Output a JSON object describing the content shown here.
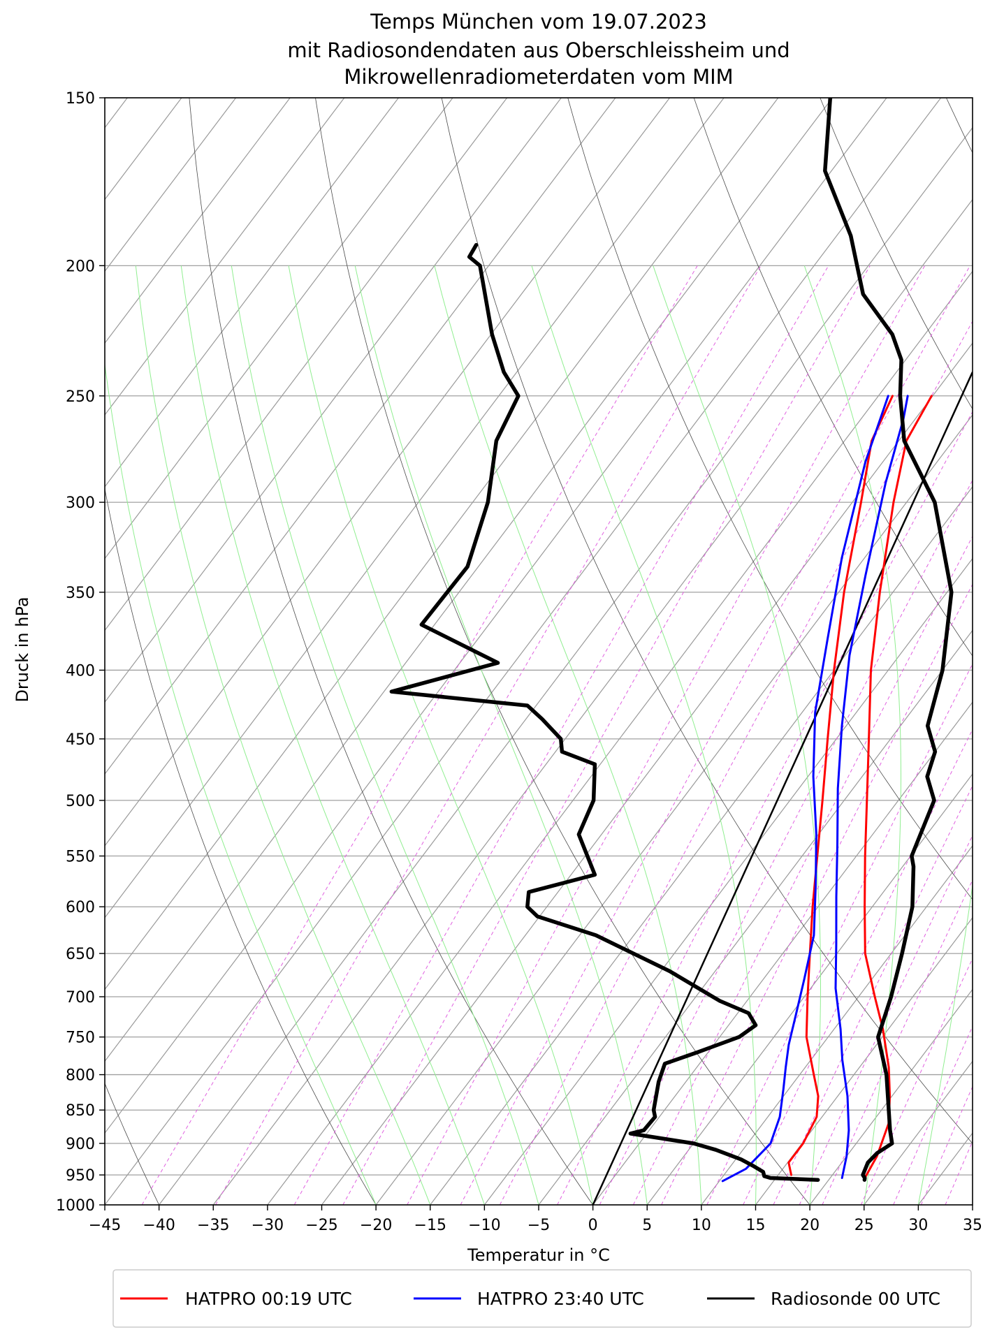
{
  "chart_data": {
    "type": "line",
    "subtype": "skew-T log-p thermodynamic diagram",
    "title_lines": [
      "Temps München vom 19.07.2023",
      "mit Radiosondendaten aus Oberschleissheim und",
      "Mikrowellenradiometerdaten vom MIM"
    ],
    "xlabel": "Temperatur in °C",
    "ylabel": "Druck in hPa",
    "xlim": [
      -45,
      35
    ],
    "ylim": [
      1000,
      150
    ],
    "yscale": "log",
    "x_ticks": [
      -45,
      -40,
      -35,
      -30,
      -25,
      -20,
      -15,
      -10,
      -5,
      0,
      5,
      10,
      15,
      20,
      25,
      30,
      35
    ],
    "x_tick_labels": [
      "−45",
      "−40",
      "−35",
      "−30",
      "−25",
      "−20",
      "−15",
      "−10",
      "−5",
      "0",
      "5",
      "10",
      "15",
      "20",
      "25",
      "30",
      "35"
    ],
    "y_ticks": [
      1000,
      950,
      900,
      850,
      800,
      750,
      700,
      650,
      600,
      550,
      500,
      450,
      400,
      350,
      300,
      250,
      200,
      150
    ],
    "grid": true,
    "legend_position": "bottom",
    "series": [
      {
        "name": "HATPRO 00:19 UTC",
        "color": "#ff0000",
        "profiles": [
          [
            [
              23.2,
              955
            ],
            [
              22.8,
              920
            ],
            [
              21.6,
              870
            ],
            [
              19.8,
              830
            ],
            [
              17.7,
              790
            ],
            [
              14.5,
              740
            ],
            [
              11.5,
              700
            ],
            [
              7.6,
              650
            ],
            [
              4.3,
              600
            ],
            [
              0.8,
              550
            ],
            [
              -2.9,
              500
            ],
            [
              -7.0,
              450
            ],
            [
              -11.6,
              400
            ],
            [
              -16.2,
              350
            ],
            [
              -21.2,
              300
            ],
            [
              -24.3,
              270
            ],
            [
              -25.1,
              250
            ]
          ],
          [
            [
              16.2,
              950
            ],
            [
              15.1,
              930
            ],
            [
              15.1,
              900
            ],
            [
              14.5,
              860
            ],
            [
              13.2,
              830
            ],
            [
              11.3,
              800
            ],
            [
              8.0,
              750
            ],
            [
              5.3,
              700
            ],
            [
              2.5,
              650
            ],
            [
              -0.5,
              600
            ],
            [
              -3.6,
              550
            ],
            [
              -7.0,
              500
            ],
            [
              -10.8,
              450
            ],
            [
              -15.0,
              400
            ],
            [
              -19.5,
              350
            ],
            [
              -24.2,
              300
            ],
            [
              -27.5,
              270
            ],
            [
              -28.7,
              250
            ]
          ]
        ]
      },
      {
        "name": "HATPRO 23:40 UTC",
        "color": "#0000ff",
        "profiles": [
          [
            [
              21.1,
              955
            ],
            [
              20.0,
              920
            ],
            [
              18.4,
              880
            ],
            [
              15.9,
              830
            ],
            [
              12.9,
              780
            ],
            [
              10.6,
              740
            ],
            [
              7.3,
              690
            ],
            [
              4.3,
              640
            ],
            [
              1.0,
              590
            ],
            [
              -2.5,
              540
            ],
            [
              -6.4,
              490
            ],
            [
              -10.4,
              440
            ],
            [
              -14.6,
              390
            ],
            [
              -18.7,
              340
            ],
            [
              -23.3,
              290
            ],
            [
              -26.1,
              260
            ],
            [
              -27.3,
              250
            ]
          ],
          [
            [
              10.3,
              960
            ],
            [
              11.6,
              940
            ],
            [
              12.1,
              900
            ],
            [
              11.1,
              860
            ],
            [
              9.5,
              820
            ],
            [
              8.2,
              790
            ],
            [
              6.9,
              760
            ],
            [
              5.4,
              720
            ],
            [
              3.8,
              680
            ],
            [
              1.6,
              630
            ],
            [
              -1.6,
              580
            ],
            [
              -5.2,
              530
            ],
            [
              -9.5,
              480
            ],
            [
              -13.8,
              430
            ],
            [
              -17.7,
              380
            ],
            [
              -22.1,
              330
            ],
            [
              -26.6,
              280
            ],
            [
              -29.1,
              250
            ]
          ]
        ]
      },
      {
        "name": "Radiosonde 00 UTC",
        "color": "#000000",
        "profiles": [
          [
            [
              23.3,
              958
            ],
            [
              23.2,
              955
            ],
            [
              22.8,
              950
            ],
            [
              22.4,
              930
            ],
            [
              22.6,
              915
            ],
            [
              23.3,
              900
            ],
            [
              22.2,
              880
            ],
            [
              18.0,
              800
            ],
            [
              14.6,
              750
            ],
            [
              13.0,
              700
            ],
            [
              11.0,
              650
            ],
            [
              8.7,
              600
            ],
            [
              6.0,
              560
            ],
            [
              5.1,
              550
            ],
            [
              3.3,
              500
            ],
            [
              1.0,
              480
            ],
            [
              0.0,
              460
            ],
            [
              -2.5,
              440
            ],
            [
              -5.0,
              400
            ],
            [
              -9.6,
              350
            ],
            [
              -17.4,
              300
            ],
            [
              -24.5,
              270
            ],
            [
              -28.0,
              250
            ],
            [
              -30.4,
              235
            ],
            [
              -33.0,
              225
            ],
            [
              -38.5,
              210
            ],
            [
              -43.7,
              190
            ],
            [
              -50.6,
              170
            ],
            [
              -55.2,
              150
            ]
          ],
          [
            [
              19.0,
              958
            ],
            [
              14.5,
              955
            ],
            [
              13.8,
              952
            ],
            [
              13.4,
              945
            ],
            [
              12.0,
              935
            ],
            [
              10.5,
              925
            ],
            [
              7.5,
              910
            ],
            [
              5.0,
              900
            ],
            [
              -1.5,
              885
            ],
            [
              -0.5,
              880
            ],
            [
              -0.4,
              860
            ],
            [
              -1.0,
              850
            ],
            [
              -2.5,
              810
            ],
            [
              -3.2,
              785
            ],
            [
              -1.0,
              770
            ],
            [
              1.8,
              750
            ],
            [
              2.5,
              735
            ],
            [
              1.0,
              720
            ],
            [
              -2.5,
              705
            ],
            [
              -9.2,
              670
            ],
            [
              -18.5,
              630
            ],
            [
              -25.2,
              610
            ],
            [
              -26.8,
              600
            ],
            [
              -27.7,
              585
            ],
            [
              -22.8,
              568
            ],
            [
              -24.8,
              550
            ],
            [
              -27.1,
              530
            ],
            [
              -28.1,
              500
            ],
            [
              -30.5,
              470
            ],
            [
              -34.4,
              460
            ],
            [
              -35.4,
              450
            ],
            [
              -38.5,
              435
            ],
            [
              -40.8,
              425
            ],
            [
              -54.3,
              415
            ],
            [
              -46.5,
              395
            ],
            [
              -56.2,
              370
            ],
            [
              -56.0,
              335
            ],
            [
              -58.6,
              300
            ],
            [
              -62.1,
              270
            ],
            [
              -63.2,
              250
            ],
            [
              -66.2,
              240
            ],
            [
              -69.9,
              225
            ],
            [
              -75.8,
              200
            ],
            [
              -77.4,
              197
            ],
            [
              -77.6,
              193
            ]
          ]
        ]
      }
    ],
    "reference_line": {
      "color": "#000000",
      "from": [
        0,
        1000
      ],
      "to": [
        35,
        240
      ]
    }
  }
}
